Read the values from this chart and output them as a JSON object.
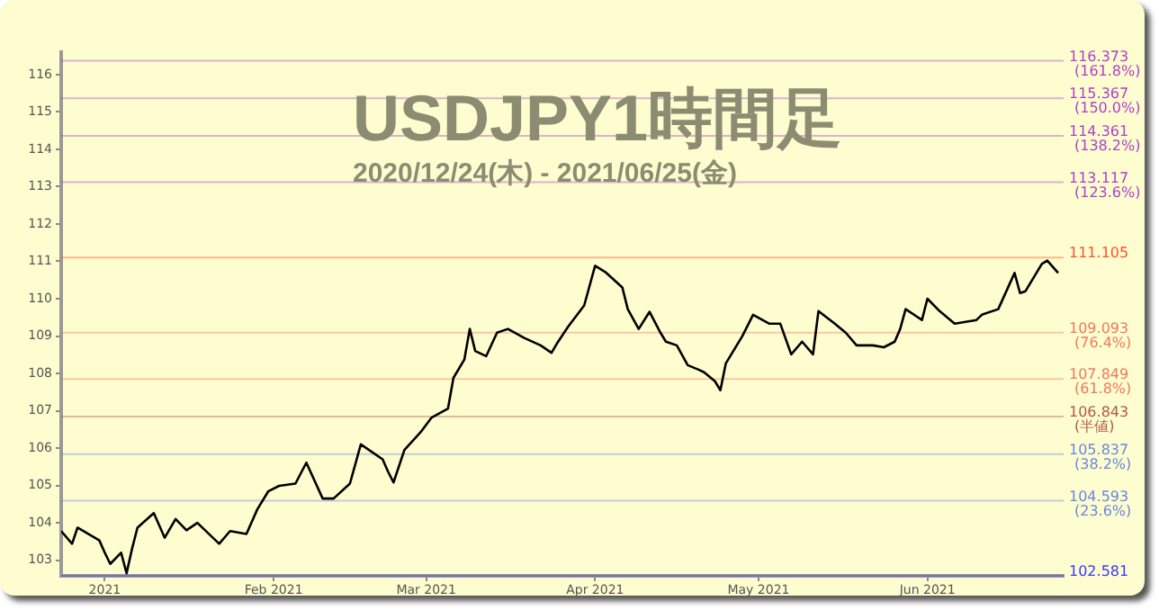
{
  "chart_data": {
    "type": "line",
    "title": "USDJPY1時間足",
    "subtitle": "2020/12/24(木) - 2021/06/25(金)",
    "x": [
      "2020-12-24",
      "2020-12-26",
      "2020-12-27",
      "2020-12-31",
      "2021-01-01",
      "2021-01-02",
      "2021-01-04",
      "2021-01-05",
      "2021-01-06",
      "2021-01-07",
      "2021-01-10",
      "2021-01-12",
      "2021-01-14",
      "2021-01-16",
      "2021-01-18",
      "2021-01-22",
      "2021-01-24",
      "2021-01-27",
      "2021-01-29",
      "2021-01-31",
      "2021-02-02",
      "2021-02-05",
      "2021-02-07",
      "2021-02-10",
      "2021-02-12",
      "2021-02-15",
      "2021-02-17",
      "2021-02-21",
      "2021-02-22",
      "2021-02-23",
      "2021-02-25",
      "2021-02-28",
      "2021-03-02",
      "2021-03-05",
      "2021-03-06",
      "2021-03-08",
      "2021-03-09",
      "2021-03-10",
      "2021-03-12",
      "2021-03-14",
      "2021-03-16",
      "2021-03-19",
      "2021-03-22",
      "2021-03-24",
      "2021-03-25",
      "2021-03-27",
      "2021-03-30",
      "2021-04-01",
      "2021-04-03",
      "2021-04-06",
      "2021-04-07",
      "2021-04-09",
      "2021-04-11",
      "2021-04-13",
      "2021-04-14",
      "2021-04-16",
      "2021-04-18",
      "2021-04-20",
      "2021-04-21",
      "2021-04-23",
      "2021-04-24",
      "2021-04-25",
      "2021-04-27",
      "2021-04-28",
      "2021-04-30",
      "2021-05-03",
      "2021-05-05",
      "2021-05-07",
      "2021-05-09",
      "2021-05-11",
      "2021-05-12",
      "2021-05-15",
      "2021-05-17",
      "2021-05-19",
      "2021-05-22",
      "2021-05-24",
      "2021-05-26",
      "2021-05-27",
      "2021-05-28",
      "2021-05-31",
      "2021-06-01",
      "2021-06-03",
      "2021-06-06",
      "2021-06-10",
      "2021-06-11",
      "2021-06-14",
      "2021-06-17",
      "2021-06-18",
      "2021-06-19",
      "2021-06-22",
      "2021-06-23",
      "2021-06-25"
    ],
    "values": [
      103.78,
      103.44,
      103.87,
      103.53,
      103.2,
      102.9,
      103.2,
      102.65,
      103.3,
      103.87,
      104.26,
      103.6,
      104.1,
      103.8,
      104.0,
      103.44,
      103.78,
      103.7,
      104.36,
      104.84,
      104.99,
      105.05,
      105.61,
      104.65,
      104.65,
      105.05,
      106.1,
      105.7,
      105.37,
      105.08,
      105.95,
      106.43,
      106.82,
      107.06,
      107.88,
      108.37,
      109.19,
      108.6,
      108.46,
      109.09,
      109.19,
      108.95,
      108.75,
      108.55,
      108.8,
      109.24,
      109.82,
      110.88,
      110.7,
      110.3,
      109.72,
      109.19,
      109.65,
      109.09,
      108.85,
      108.75,
      108.22,
      108.1,
      108.03,
      107.79,
      107.55,
      108.27,
      108.75,
      108.99,
      109.57,
      109.33,
      109.33,
      108.51,
      108.85,
      108.51,
      109.67,
      109.33,
      109.09,
      108.75,
      108.75,
      108.7,
      108.85,
      109.19,
      109.72,
      109.43,
      110.0,
      109.7,
      109.33,
      109.43,
      109.57,
      109.72,
      110.69,
      110.15,
      110.2,
      110.93,
      111.02,
      110.69
    ],
    "color": "#000000",
    "xlim": [
      "2020-12-24",
      "2021-06-26"
    ],
    "xticks": [
      {
        "value": "2021-01-01",
        "label": "2021"
      },
      {
        "value": "2021-02-01",
        "label": "Feb 2021"
      },
      {
        "value": "2021-03-01",
        "label": "Mar 2021"
      },
      {
        "value": "2021-04-01",
        "label": "Apr 2021"
      },
      {
        "value": "2021-05-01",
        "label": "May 2021"
      },
      {
        "value": "2021-06-01",
        "label": "Jun 2021"
      }
    ],
    "ylim": [
      102.581,
      116.6
    ],
    "yticks": [
      103,
      104,
      105,
      106,
      107,
      108,
      109,
      110,
      111,
      112,
      113,
      114,
      115,
      116
    ],
    "ref_lines": [
      {
        "axis": "y",
        "value": 116.373,
        "label": "116.373\n(161.8%)",
        "color": "#b040c8"
      },
      {
        "axis": "y",
        "value": 115.367,
        "label": "115.367\n(150.0%)",
        "color": "#b040c8"
      },
      {
        "axis": "y",
        "value": 114.361,
        "label": "114.361\n(138.2%)",
        "color": "#b040c8"
      },
      {
        "axis": "y",
        "value": 113.117,
        "label": "113.117\n(123.6%)",
        "color": "#b040c8"
      },
      {
        "axis": "y",
        "value": 111.105,
        "label": "111.105",
        "color": "#ff5030"
      },
      {
        "axis": "y",
        "value": 109.093,
        "label": "109.093\n(76.4%)",
        "color": "#f07860"
      },
      {
        "axis": "y",
        "value": 107.849,
        "label": "107.849\n(61.8%)",
        "color": "#f07860"
      },
      {
        "axis": "y",
        "value": 106.843,
        "label": "106.843\n(半値)",
        "color": "#b05848"
      },
      {
        "axis": "y",
        "value": 105.837,
        "label": "105.837\n(38.2%)",
        "color": "#6888e0"
      },
      {
        "axis": "y",
        "value": 104.593,
        "label": "104.593\n(23.6%)",
        "color": "#6888e0"
      },
      {
        "axis": "y",
        "value": 102.581,
        "label": "102.581",
        "color": "#3838ff"
      }
    ],
    "grid": false,
    "legend": false,
    "marker": "none",
    "line_style": "solid"
  }
}
